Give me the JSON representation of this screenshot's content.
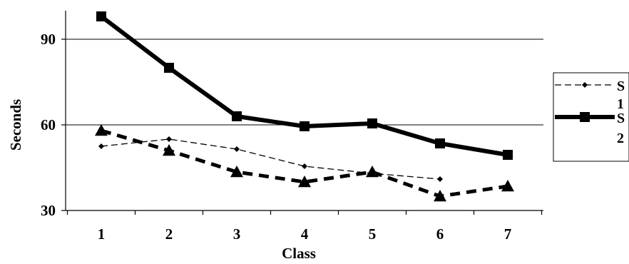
{
  "chart_data": {
    "type": "line",
    "title": "",
    "xlabel": "Class",
    "ylabel": "Seconds",
    "categories": [
      "1",
      "2",
      "3",
      "4",
      "5",
      "6",
      "7"
    ],
    "ylim": [
      30,
      100
    ],
    "yticks": [
      "30",
      "60",
      "90"
    ],
    "grid": "horizontal major gridlines at 60 and 90",
    "legend_position": "right",
    "series": [
      {
        "name": "S1",
        "legend_label": [
          "S",
          "1"
        ],
        "style": "thin dashed line with small diamond markers",
        "color": "#000000",
        "values": [
          52.5,
          55,
          51.5,
          45.5,
          43,
          41,
          null
        ]
      },
      {
        "name": "S2",
        "legend_label": [
          "S",
          "2"
        ],
        "style": "thick solid line with square markers",
        "color": "#000000",
        "values": [
          98,
          80,
          63,
          59.5,
          60.5,
          53.5,
          49.5
        ]
      },
      {
        "style": "thick dashed line with triangle markers",
        "color": "#000000",
        "values": [
          58,
          51,
          43.5,
          40,
          43.5,
          35,
          38.5
        ]
      }
    ]
  }
}
